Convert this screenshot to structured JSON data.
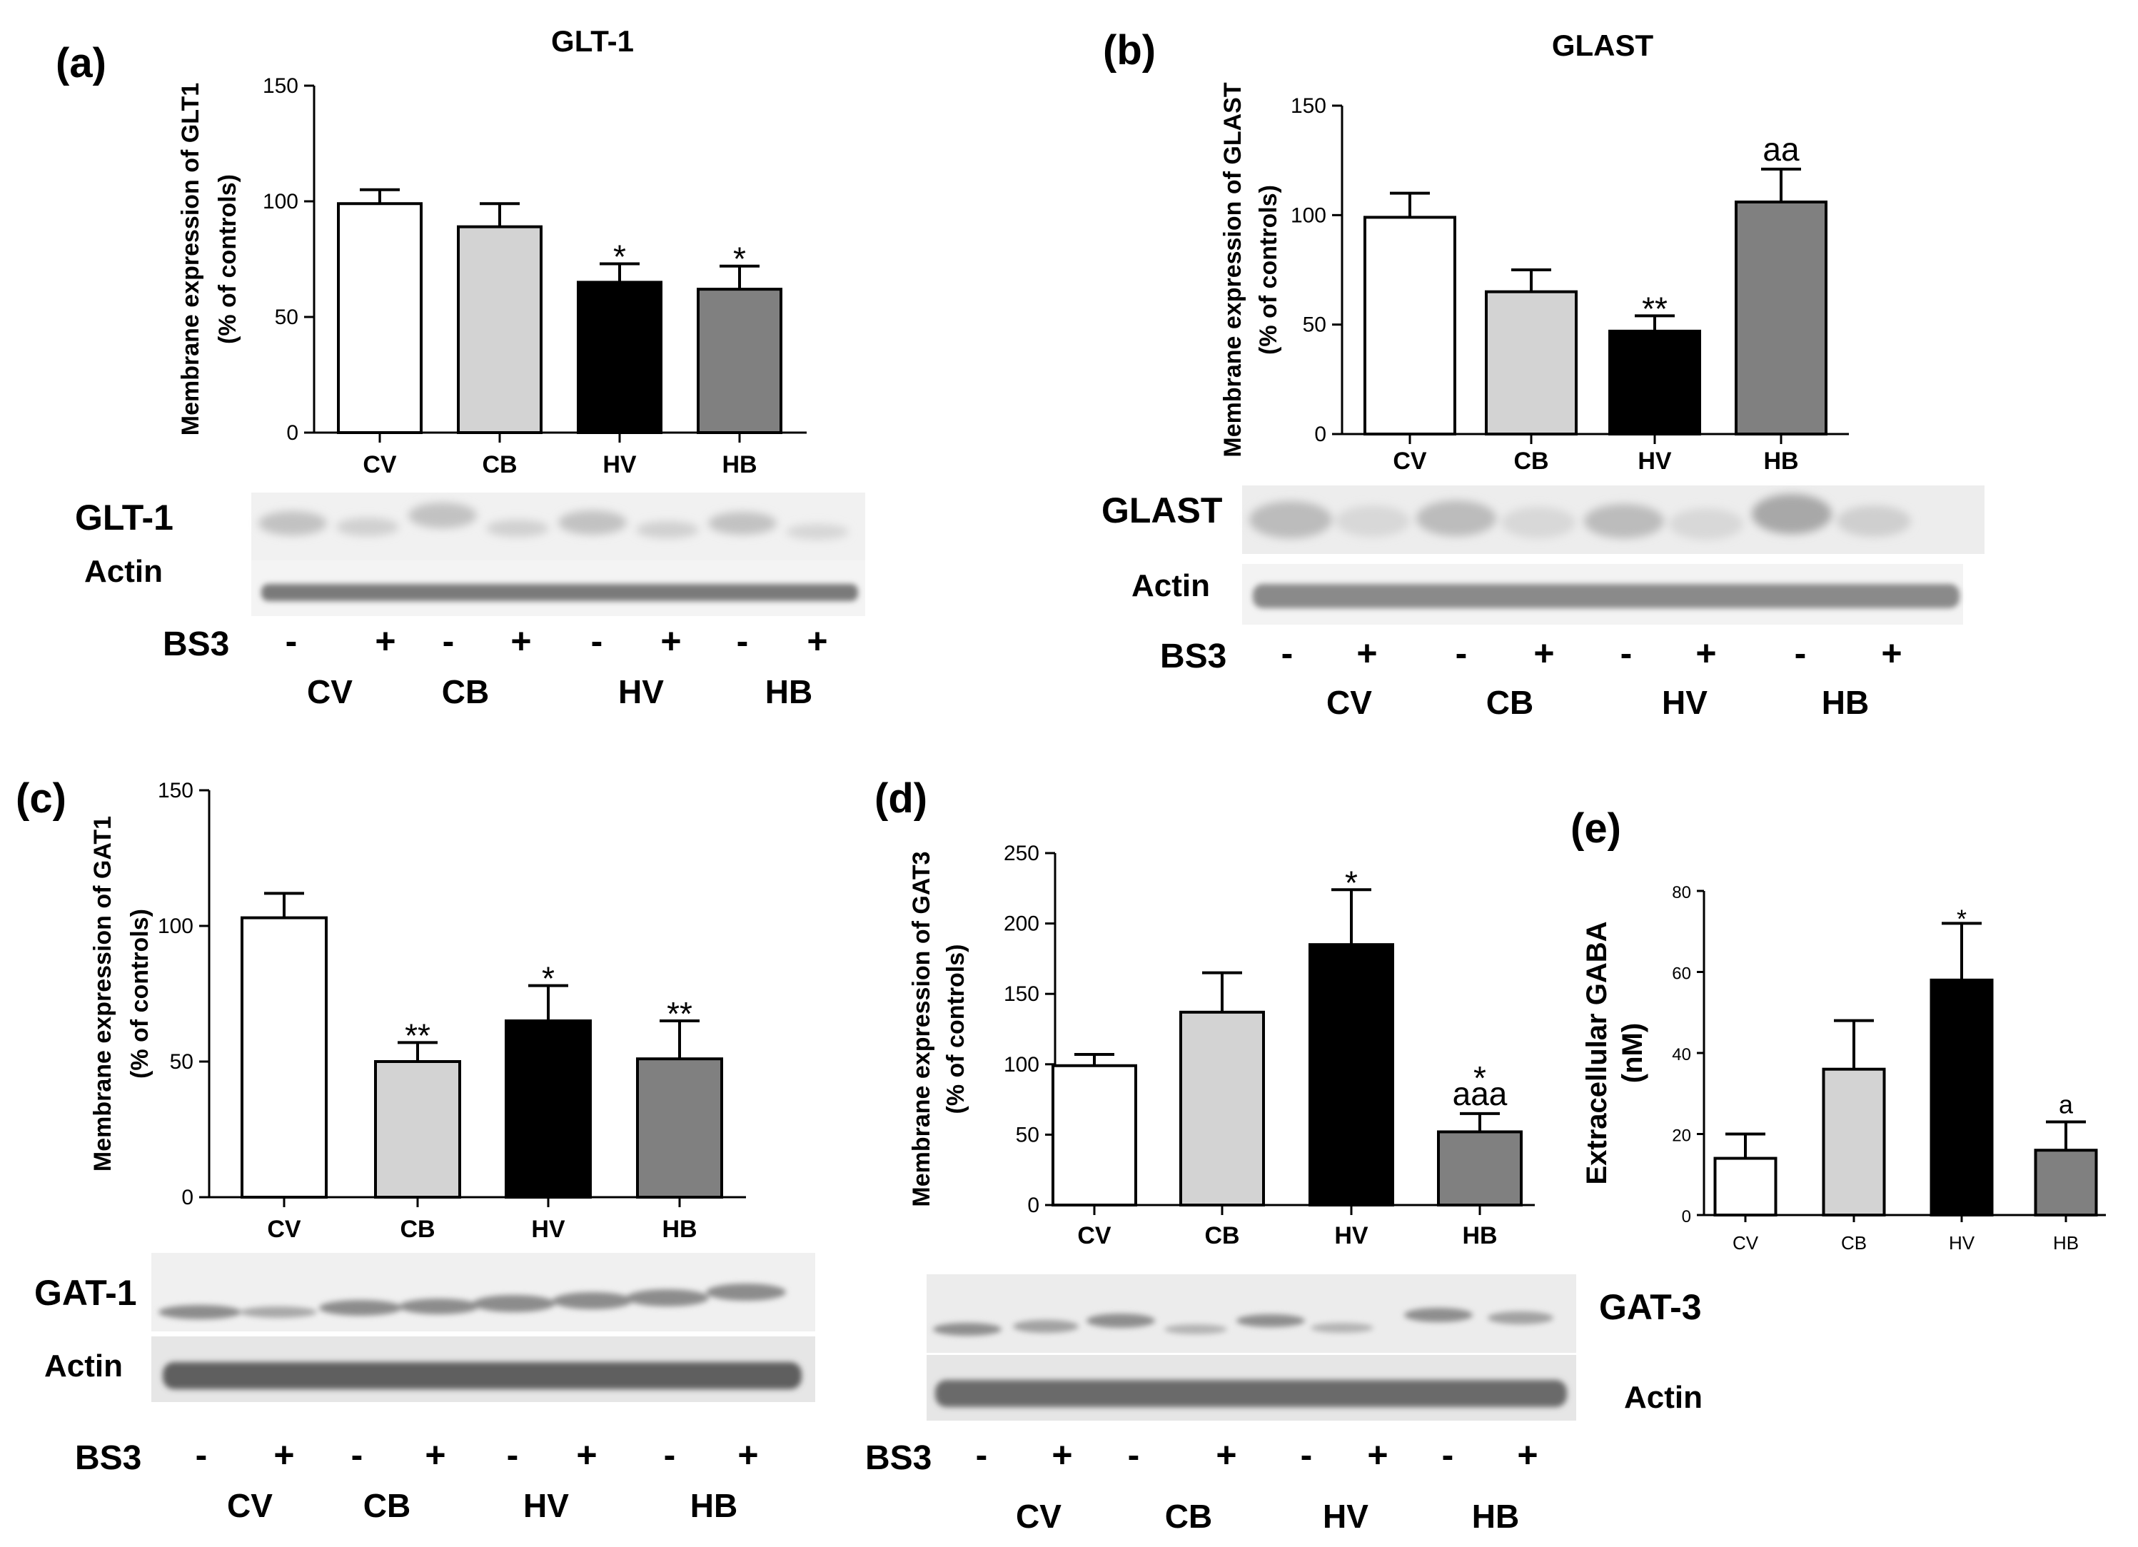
{
  "chart_data": [
    {
      "panel": "(a)",
      "type": "bar",
      "title": "GLT-1",
      "ylabel": [
        "Membrane expression of GLT1",
        "(% of controls)"
      ],
      "xlabel": "",
      "categories": [
        "CV",
        "CB",
        "HV",
        "HB"
      ],
      "values": [
        99,
        89,
        65,
        62
      ],
      "errors": [
        6,
        10,
        8,
        10
      ],
      "annotations": [
        "",
        "",
        "*",
        "*"
      ],
      "ylim": [
        0,
        150
      ],
      "yticks": [
        "0",
        "50",
        "100",
        "150"
      ],
      "colors": [
        "#ffffff",
        "#d3d3d3",
        "#000000",
        "#808080"
      ]
    },
    {
      "panel": "(b)",
      "type": "bar",
      "title": "GLAST",
      "ylabel": [
        "Membrane expression of GLAST",
        "(% of controls)"
      ],
      "xlabel": "",
      "categories": [
        "CV",
        "CB",
        "HV",
        "HB"
      ],
      "values": [
        99,
        65,
        47,
        106
      ],
      "errors": [
        11,
        10,
        7,
        15
      ],
      "annotations": [
        "",
        "",
        "**",
        "aa"
      ],
      "ylim": [
        0,
        150
      ],
      "yticks": [
        "0",
        "50",
        "100",
        "150"
      ],
      "colors": [
        "#ffffff",
        "#d3d3d3",
        "#000000",
        "#808080"
      ]
    },
    {
      "panel": "(c)",
      "type": "bar",
      "title": "",
      "ylabel": [
        "Membrane expression of GAT1",
        "(% of controls)"
      ],
      "xlabel": "",
      "categories": [
        "CV",
        "CB",
        "HV",
        "HB"
      ],
      "values": [
        103,
        50,
        65,
        51
      ],
      "errors": [
        9,
        7,
        13,
        14
      ],
      "annotations": [
        "",
        "**",
        "*",
        "**"
      ],
      "ylim": [
        0,
        150
      ],
      "yticks": [
        "0",
        "50",
        "100",
        "150"
      ],
      "colors": [
        "#ffffff",
        "#d3d3d3",
        "#000000",
        "#808080"
      ]
    },
    {
      "panel": "(d)",
      "type": "bar",
      "title": "",
      "ylabel": [
        "Membrane expression of GAT3",
        "(% of controls)"
      ],
      "xlabel": "",
      "categories": [
        "CV",
        "CB",
        "HV",
        "HB"
      ],
      "values": [
        99,
        137,
        185,
        52
      ],
      "errors": [
        8,
        28,
        39,
        13
      ],
      "annotations": [
        "",
        "",
        "*",
        "*\naaa"
      ],
      "ylim": [
        0,
        250
      ],
      "yticks": [
        "0",
        "50",
        "100",
        "150",
        "200",
        "250"
      ],
      "colors": [
        "#ffffff",
        "#d3d3d3",
        "#000000",
        "#808080"
      ]
    },
    {
      "panel": "(e)",
      "type": "bar",
      "title": "",
      "ylabel": [
        "Extracellular GABA",
        "(nM)"
      ],
      "xlabel": "",
      "categories": [
        "CV",
        "CB",
        "HV",
        "HB"
      ],
      "values": [
        14,
        36,
        58,
        16
      ],
      "errors": [
        6,
        12,
        14,
        7
      ],
      "annotations": [
        "",
        "",
        "*",
        "a"
      ],
      "ylim": [
        0,
        80
      ],
      "yticks": [
        "0",
        "20",
        "40",
        "60",
        "80"
      ],
      "colors": [
        "#ffffff",
        "#d3d3d3",
        "#000000",
        "#808080"
      ]
    }
  ],
  "blots": {
    "a": {
      "protein": "GLT-1",
      "control": "Actin",
      "treatment": "BS3",
      "signs": [
        "-",
        "+",
        "-",
        "+",
        "-",
        "+",
        "-",
        "+"
      ],
      "groups": [
        "CV",
        "CB",
        "HV",
        "HB"
      ]
    },
    "b": {
      "protein": "GLAST",
      "control": "Actin",
      "treatment": "BS3",
      "signs": [
        "-",
        "+",
        "-",
        "+",
        "-",
        "+",
        "-",
        "+"
      ],
      "groups": [
        "CV",
        "CB",
        "HV",
        "HB"
      ]
    },
    "c": {
      "protein": "GAT-1",
      "control": "Actin",
      "treatment": "BS3",
      "signs": [
        "-",
        "+",
        "-",
        "+",
        "-",
        "+",
        "-",
        "+"
      ],
      "groups": [
        "CV",
        "CB",
        "HV",
        "HB"
      ]
    },
    "d": {
      "protein": "GAT-3",
      "control": "Actin",
      "treatment": "BS3",
      "signs": [
        "-",
        "+",
        "-",
        "+",
        "-",
        "+",
        "-",
        "+"
      ],
      "groups": [
        "CV",
        "CB",
        "HV",
        "HB"
      ]
    }
  }
}
